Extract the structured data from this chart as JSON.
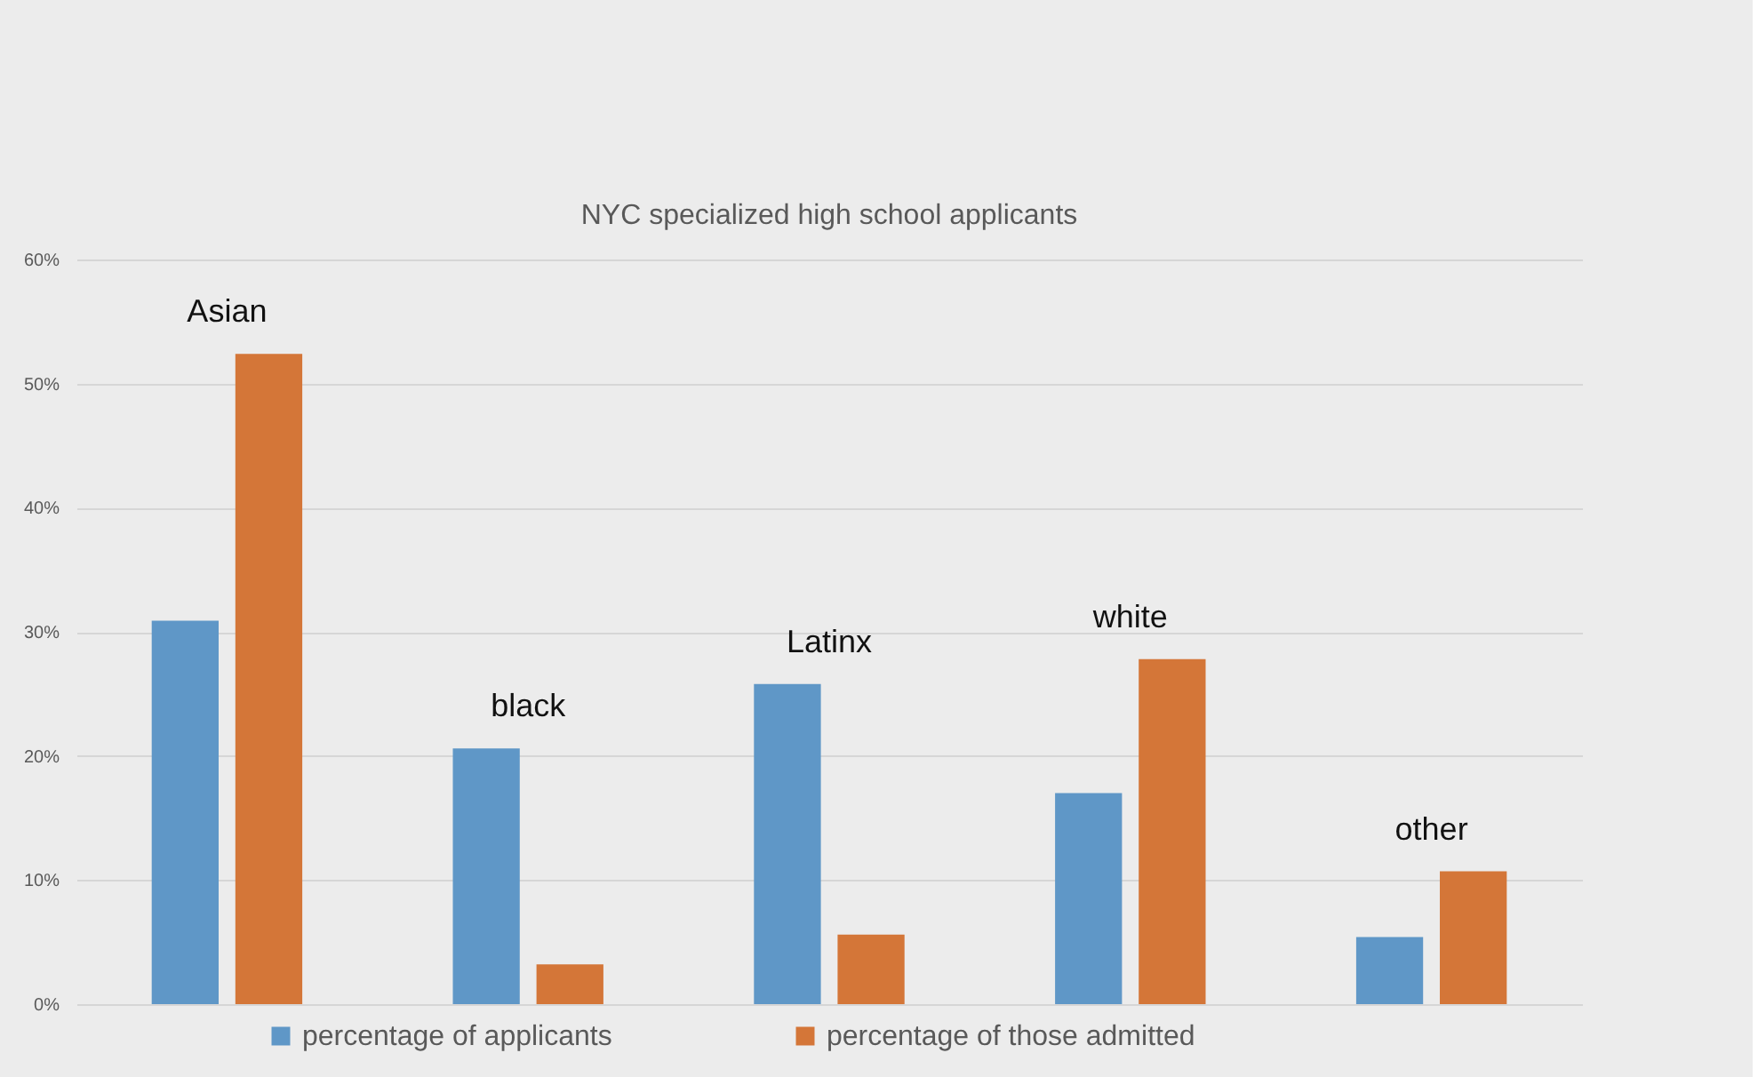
{
  "chart_data": {
    "type": "bar",
    "title": "NYC specialized high school applicants",
    "categories": [
      "Asian",
      "black",
      "Latinx",
      "white",
      "other"
    ],
    "series": [
      {
        "name": "percentage of applicants",
        "color": "#5f97c7",
        "values": [
          30.9,
          20.6,
          25.8,
          17.0,
          5.4
        ]
      },
      {
        "name": "percentage of those admitted",
        "color": "#d47638",
        "values": [
          52.4,
          3.2,
          5.6,
          27.8,
          10.7
        ]
      }
    ],
    "ylim": [
      0,
      60
    ],
    "yticks": [
      {
        "value": 0,
        "label": "0%"
      },
      {
        "value": 10,
        "label": "10%"
      },
      {
        "value": 20,
        "label": "20%"
      },
      {
        "value": 30,
        "label": "30%"
      },
      {
        "value": 40,
        "label": "40%"
      },
      {
        "value": 50,
        "label": "50%"
      },
      {
        "value": 60,
        "label": "60%"
      }
    ],
    "grid": "y",
    "legend": "bottom"
  }
}
